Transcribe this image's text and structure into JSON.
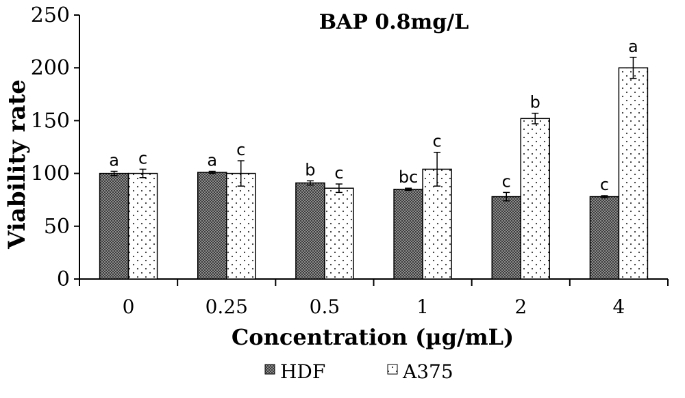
{
  "chart_data": {
    "type": "bar",
    "title": "BAP 0.8mg/L",
    "xlabel": "Concentration (µg/mL)",
    "ylabel": "Viability rate",
    "ylim": [
      0,
      250
    ],
    "yticks": [
      0,
      50,
      100,
      150,
      200,
      250
    ],
    "categories": [
      "0",
      "0.25",
      "0.5",
      "1",
      "2",
      "4"
    ],
    "grid": false,
    "legend_position": "bottom",
    "series": [
      {
        "name": "HDF",
        "pattern": "dense-checker",
        "values": [
          100,
          101,
          91,
          85,
          78,
          78
        ],
        "errors": [
          2,
          1,
          2,
          1,
          4,
          1
        ],
        "labels": [
          "a",
          "a",
          "b",
          "bc",
          "c",
          "c"
        ]
      },
      {
        "name": "A375",
        "pattern": "sparse-dots",
        "values": [
          100,
          100,
          86,
          104,
          152,
          200
        ],
        "errors": [
          4,
          12,
          4,
          16,
          5,
          10
        ],
        "labels": [
          "c",
          "c",
          "c",
          "c",
          "b",
          "a"
        ]
      }
    ]
  }
}
